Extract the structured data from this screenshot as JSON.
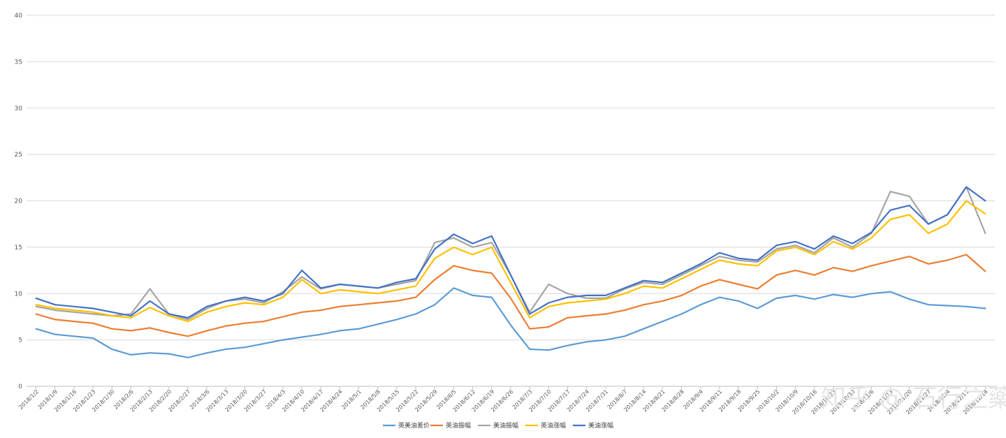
{
  "chart_data": {
    "type": "line",
    "title": "",
    "xlabel": "",
    "ylabel": "",
    "ylim": [
      0,
      40
    ],
    "y_ticks": [
      0,
      5,
      10,
      15,
      20,
      25,
      30,
      35,
      40
    ],
    "grid": true,
    "legend": "bottom",
    "x_tick_labels": [
      "2018/1/2",
      "2018/1/9",
      "2018/1/16",
      "2018/1/23",
      "2018/1/30",
      "2018/2/6",
      "2018/2/13",
      "2018/2/20",
      "2018/2/27",
      "2018/3/6",
      "2018/3/13",
      "2018/3/20",
      "2018/3/27",
      "2018/4/3",
      "2018/4/10",
      "2018/4/17",
      "2018/4/24",
      "2018/5/1",
      "2018/5/8",
      "2018/5/15",
      "2018/5/22",
      "2018/5/29",
      "2018/6/5",
      "2018/6/12",
      "2018/6/19",
      "2018/6/26",
      "2018/7/3",
      "2018/7/10",
      "2018/7/17",
      "2018/7/24",
      "2018/7/31",
      "2018/8/7",
      "2018/8/14",
      "2018/8/21",
      "2018/8/28",
      "2018/9/4",
      "2018/9/11",
      "2018/9/18",
      "2018/9/25",
      "2018/10/2",
      "2018/10/9",
      "2018/10/16",
      "2018/10/23",
      "2018/10/30",
      "2018/11/6",
      "2018/11/13",
      "2018/11/20",
      "2018/11/27",
      "2018/12/4",
      "2018/12/11",
      "2018/12/18"
    ],
    "series": [
      {
        "name": "英美油差价",
        "color": "#5b9bd5",
        "values": [
          6.2,
          5.6,
          5.4,
          5.2,
          4.0,
          3.4,
          3.6,
          3.5,
          3.1,
          3.6,
          4.0,
          4.2,
          4.6,
          5.0,
          5.3,
          5.6,
          6.0,
          6.2,
          6.7,
          7.2,
          7.8,
          8.8,
          10.6,
          9.8,
          9.6,
          6.6,
          4.0,
          3.9,
          4.4,
          4.8,
          5.0,
          5.4,
          6.2,
          7.0,
          7.8,
          8.8,
          9.6,
          9.2,
          8.4,
          9.5,
          9.8,
          9.4,
          9.9,
          9.6,
          10.0,
          10.2,
          9.4,
          8.8,
          8.7,
          8.6,
          8.4
        ]
      },
      {
        "name": "英油振幅",
        "color": "#ed7d31",
        "values": [
          7.8,
          7.2,
          7.0,
          6.8,
          6.2,
          6.0,
          6.3,
          5.8,
          5.4,
          6.0,
          6.5,
          6.8,
          7.0,
          7.5,
          8.0,
          8.2,
          8.6,
          8.8,
          9.0,
          9.2,
          9.6,
          11.5,
          13.0,
          12.5,
          12.2,
          9.5,
          6.2,
          6.4,
          7.4,
          7.6,
          7.8,
          8.2,
          8.8,
          9.2,
          9.8,
          10.8,
          11.5,
          11.0,
          10.5,
          12.0,
          12.5,
          12.0,
          12.8,
          12.4,
          13.0,
          13.5,
          14.0,
          13.2,
          13.6,
          14.2,
          12.4
        ]
      },
      {
        "name": "美油振幅",
        "color": "#a5a5a5",
        "values": [
          8.6,
          8.2,
          8.0,
          7.8,
          7.6,
          7.8,
          10.5,
          7.8,
          7.2,
          8.4,
          9.2,
          9.4,
          9.0,
          10.2,
          11.8,
          10.5,
          11.0,
          10.8,
          10.6,
          11.0,
          11.4,
          15.5,
          16.0,
          15.0,
          15.5,
          12.0,
          8.0,
          11.0,
          10.0,
          9.5,
          9.5,
          10.5,
          11.2,
          11.0,
          12.0,
          13.0,
          14.0,
          13.6,
          13.4,
          14.8,
          15.2,
          14.4,
          16.0,
          15.0,
          16.5,
          21.0,
          20.5,
          17.5,
          18.5,
          21.5,
          16.5
        ]
      },
      {
        "name": "英油涨幅",
        "color": "#ffc000",
        "values": [
          8.8,
          8.4,
          8.2,
          8.0,
          7.6,
          7.4,
          8.5,
          7.6,
          7.0,
          8.0,
          8.6,
          9.0,
          8.8,
          9.6,
          11.5,
          10.0,
          10.4,
          10.2,
          10.0,
          10.4,
          10.8,
          13.8,
          15.0,
          14.2,
          15.0,
          11.2,
          7.4,
          8.6,
          9.0,
          9.2,
          9.4,
          10.0,
          10.8,
          10.6,
          11.6,
          12.6,
          13.6,
          13.2,
          13.0,
          14.6,
          15.0,
          14.2,
          15.6,
          14.8,
          16.0,
          18.0,
          18.5,
          16.5,
          17.5,
          20.0,
          18.6
        ]
      },
      {
        "name": "美油涨幅",
        "color": "#4472c4",
        "values": [
          9.5,
          8.8,
          8.6,
          8.4,
          8.0,
          7.6,
          9.2,
          7.8,
          7.4,
          8.6,
          9.2,
          9.6,
          9.2,
          10.0,
          12.5,
          10.6,
          11.0,
          10.8,
          10.6,
          11.2,
          11.6,
          14.8,
          16.4,
          15.4,
          16.2,
          12.0,
          7.8,
          9.0,
          9.6,
          9.8,
          9.8,
          10.6,
          11.4,
          11.2,
          12.2,
          13.2,
          14.4,
          13.8,
          13.6,
          15.2,
          15.6,
          14.8,
          16.2,
          15.4,
          16.6,
          19.0,
          19.5,
          17.5,
          18.5,
          21.5,
          20.0
        ]
      }
    ]
  },
  "watermark": "知乎 @ 石行之藥"
}
